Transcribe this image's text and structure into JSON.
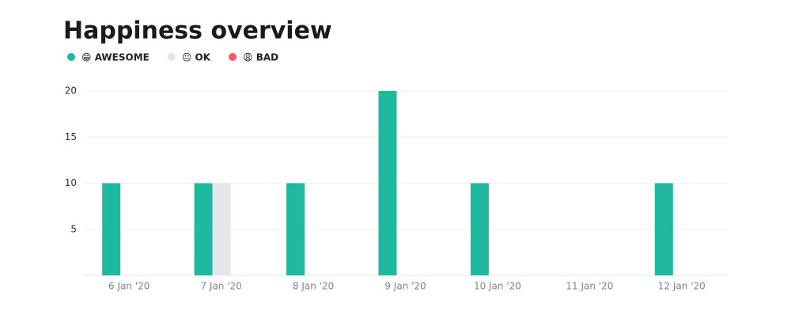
{
  "chart_data": {
    "type": "bar",
    "title": "Happiness overview",
    "categories": [
      "6 Jan '20",
      "7 Jan '20",
      "8 Jan '20",
      "9 Jan '20",
      "10 Jan '20",
      "11 Jan '20",
      "12 Jan '20"
    ],
    "series": [
      {
        "name": "😁 AWESOME",
        "color": "#1fb99f",
        "values": [
          10,
          10,
          10,
          20,
          10,
          0,
          10
        ]
      },
      {
        "name": "😐 OK",
        "color": "#e3e6ea",
        "values": [
          0,
          10,
          0,
          0,
          0,
          0,
          0
        ]
      },
      {
        "name": "😩 BAD",
        "color": "#f2596d",
        "values": [
          0,
          0,
          0,
          0,
          0,
          0,
          0
        ]
      }
    ],
    "ylim": [
      0,
      20
    ],
    "yticks": [
      5,
      10,
      15,
      20
    ],
    "grid": true
  }
}
